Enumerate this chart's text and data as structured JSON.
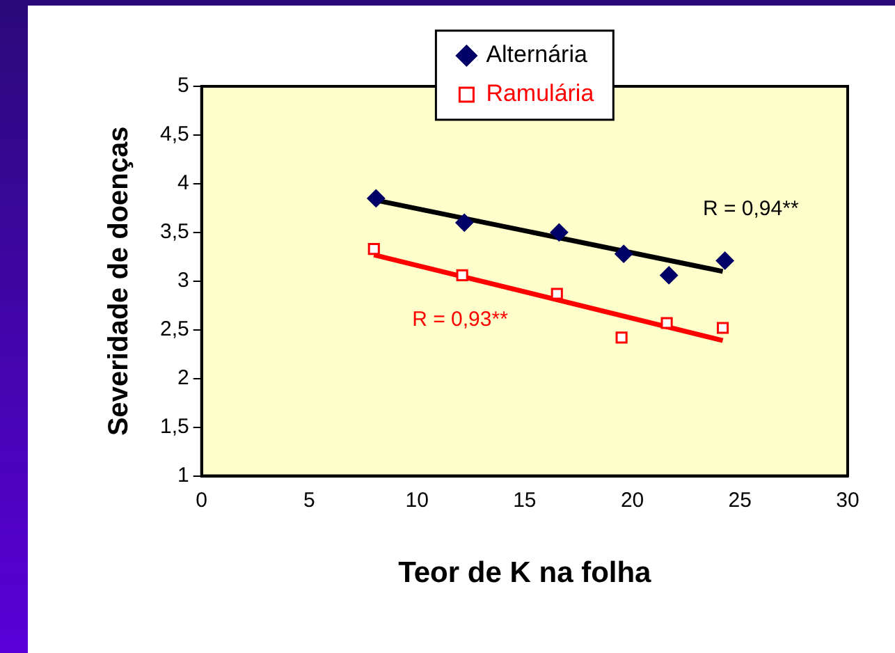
{
  "chart_data": {
    "type": "scatter",
    "xlabel": "Teor de K na folha",
    "ylabel": "Severidade de doenças",
    "xlim": [
      0,
      30
    ],
    "xticks": [
      0,
      5,
      10,
      15,
      20,
      25,
      30
    ],
    "ylim": [
      1,
      5
    ],
    "yticks": [
      1,
      {
        "value": 1.5,
        "label": "1,5"
      },
      2,
      {
        "value": 2.5,
        "label": "2,5"
      },
      3,
      {
        "value": 3.5,
        "label": "3,5"
      },
      4,
      {
        "value": 4.5,
        "label": "4,5"
      },
      5
    ],
    "grid": false,
    "legend": "top",
    "series": [
      {
        "name": "Alternária",
        "color": "#000066",
        "marker": "diamond",
        "x": [
          8.1,
          12.2,
          16.6,
          19.6,
          21.7,
          24.3
        ],
        "values": [
          3.85,
          3.6,
          3.5,
          3.28,
          3.06,
          3.21
        ]
      },
      {
        "name": "Ramulária",
        "color": "#ff0000",
        "marker": "square",
        "x": [
          8,
          12.1,
          16.5,
          19.5,
          21.6,
          24.2
        ],
        "values": [
          3.33,
          3.06,
          2.87,
          2.42,
          2.57,
          2.52
        ]
      },
      {
        "type": "line",
        "color": "#000000",
        "marker": "none",
        "x": [
          8.1,
          24.2
        ],
        "values": [
          3.83,
          3.1
        ]
      },
      {
        "type": "line",
        "color": "#ff0000",
        "marker": "none",
        "x": [
          8,
          24.2
        ],
        "values": [
          3.27,
          2.39
        ]
      }
    ],
    "annotations": [
      "R = 0,94**",
      "R = 0,93**"
    ]
  }
}
